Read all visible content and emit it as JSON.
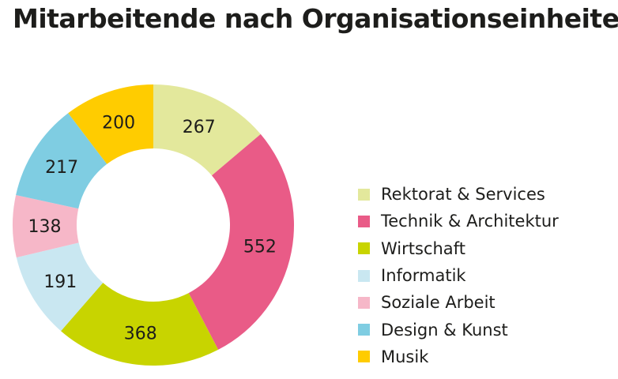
{
  "chart_data": {
    "type": "pie",
    "variant": "donut",
    "title": "Mitarbeitende nach Organisationseinheiten",
    "legend_position": "right",
    "categories": [
      "Rektorat & Services",
      "Technik & Architektur",
      "Wirtschaft",
      "Informatik",
      "Soziale Arbeit",
      "Design & Kunst",
      "Musik"
    ],
    "values": [
      267,
      552,
      368,
      191,
      138,
      217,
      200
    ],
    "colors": [
      "#e3e89c",
      "#e95b87",
      "#c8d400",
      "#c9e7f1",
      "#f6b7c8",
      "#7fcde2",
      "#ffcc00"
    ]
  }
}
